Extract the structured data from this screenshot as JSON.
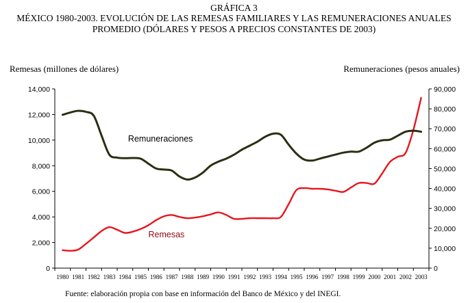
{
  "header": {
    "figure_label": "GRÁFICA 3",
    "title_line1": "MÉXICO 1980-2003. EVOLUCIÓN DE LAS REMESAS FAMILIARES Y LAS REMUNERACIONES ANUALES",
    "title_line2": "PROMEDIO (DÓLARES Y PESOS A PRECIOS CONSTANTES DE 2003)"
  },
  "footer": {
    "source": "Fuente: elaboración propia con base en información del Banco de México y del INEGI."
  },
  "colors": {
    "remesas": "#e8141c",
    "remuneraciones": "#2b2e12",
    "remesas_label": "#8b0a10",
    "axis": "#000000"
  },
  "chart_data": {
    "type": "line",
    "title": "MÉXICO 1980-2003. EVOLUCIÓN DE LAS REMESAS FAMILIARES Y LAS REMUNERACIONES ANUALES PROMEDIO (DÓLARES Y PESOS A PRECIOS CONSTANTES DE 2003)",
    "ylabel_left": "Remesas (millones de dólares)",
    "ylabel_right": "Remuneraciones (pesos anuales)",
    "ylim_left": [
      0,
      14000
    ],
    "ylim_right": [
      0,
      90000
    ],
    "yticks_left": [
      "0",
      "2,000",
      "4,000",
      "6,000",
      "8,000",
      "10,000",
      "12,000",
      "14,000"
    ],
    "yticks_right": [
      "0",
      "10,000",
      "20,000",
      "30,000",
      "40,000",
      "50,000",
      "60,000",
      "70,000",
      "80,000",
      "90,000"
    ],
    "categories": [
      "1980",
      "1981",
      "1982",
      "1983",
      "1984",
      "1985",
      "1986",
      "1987",
      "1988",
      "1989",
      "1990",
      "1991",
      "1992",
      "1993",
      "1994",
      "1995",
      "1996",
      "1997",
      "1998",
      "1999",
      "2000",
      "2001",
      "2002",
      "2003"
    ],
    "series": [
      {
        "name": "Remesas",
        "axis": "left",
        "label": "Remesas",
        "x": [
          1980,
          1980.5,
          1981,
          1981.5,
          1982,
          1982.5,
          1983,
          1983.5,
          1984,
          1984.5,
          1985,
          1985.5,
          1986,
          1986.5,
          1987,
          1987.5,
          1988,
          1988.5,
          1989,
          1989.5,
          1990,
          1990.5,
          1991,
          1991.5,
          1992,
          1992.5,
          1993,
          1993.5,
          1994,
          1994.5,
          1995,
          1995.5,
          1996,
          1996.5,
          1997,
          1997.5,
          1998,
          1998.5,
          1999,
          1999.5,
          2000,
          2000.5,
          2001,
          2001.5,
          2002,
          2002.5,
          2003
        ],
        "values": [
          1400,
          1350,
          1450,
          1900,
          2400,
          2900,
          3200,
          3000,
          2750,
          2850,
          3050,
          3350,
          3750,
          4050,
          4150,
          4000,
          3900,
          3950,
          4050,
          4200,
          4350,
          4150,
          3850,
          3850,
          3900,
          3900,
          3900,
          3900,
          4000,
          5000,
          6100,
          6250,
          6200,
          6200,
          6150,
          6050,
          5950,
          6300,
          6650,
          6650,
          6600,
          7400,
          8300,
          8700,
          9000,
          10800,
          13300
        ]
      },
      {
        "name": "Remuneraciones",
        "axis": "right",
        "label": "Remuneraciones",
        "x": [
          1980,
          1980.5,
          1981,
          1981.5,
          1982,
          1982.5,
          1983,
          1983.5,
          1984,
          1984.5,
          1985,
          1985.5,
          1986,
          1986.5,
          1987,
          1987.5,
          1988,
          1988.5,
          1989,
          1989.5,
          1990,
          1990.5,
          1991,
          1991.5,
          1992,
          1992.5,
          1993,
          1993.5,
          1994,
          1994.5,
          1995,
          1995.5,
          1996,
          1996.5,
          1997,
          1997.5,
          1998,
          1998.5,
          1999,
          1999.5,
          2000,
          2000.5,
          2001,
          2001.5,
          2002,
          2002.5,
          2003
        ],
        "values": [
          77000,
          78200,
          79000,
          78500,
          76500,
          66500,
          57000,
          55500,
          55200,
          55300,
          55000,
          52500,
          50000,
          49500,
          49000,
          46000,
          44500,
          45500,
          48000,
          51500,
          53500,
          55000,
          57000,
          59500,
          61500,
          63500,
          66000,
          67500,
          67000,
          62000,
          57500,
          54500,
          54000,
          55000,
          56000,
          57000,
          58000,
          58500,
          58500,
          60500,
          63000,
          64200,
          64500,
          66500,
          68500,
          69000,
          68500
        ]
      }
    ]
  }
}
